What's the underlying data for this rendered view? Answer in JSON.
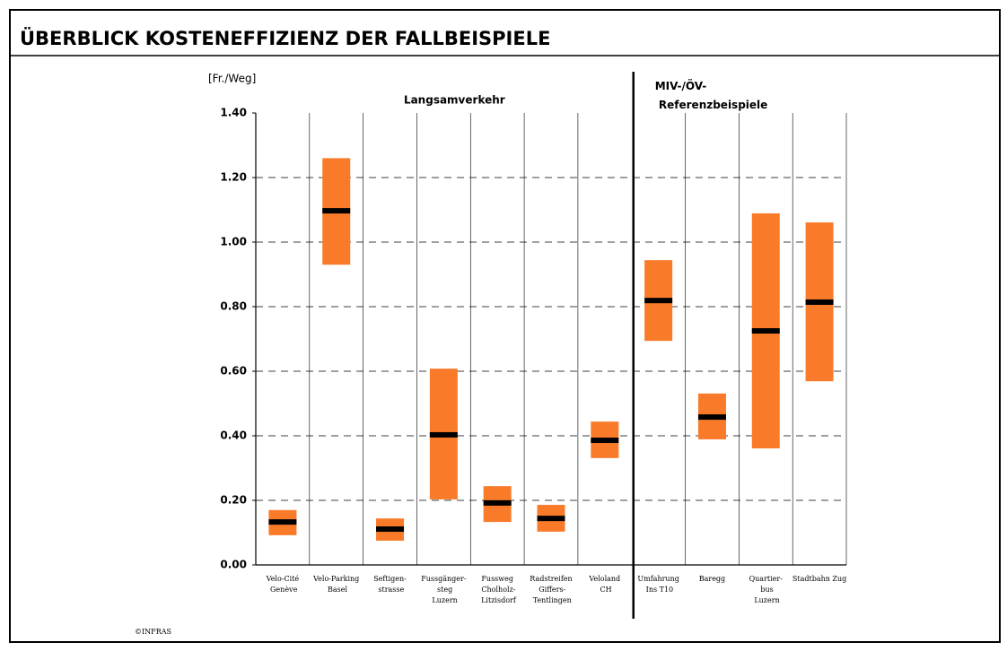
{
  "chart_data": {
    "type": "range",
    "title": "ÜBERBLICK KOSTENEFFIZIENZ DER FALLBEISPIELE",
    "y_label": "[Fr./Weg]",
    "source": "©INFRAS",
    "groups": [
      "Langsamverkehr",
      "MIV-/ÖV-\nReferenzbeispiele"
    ],
    "categories": [
      "Velo-Cité\nGenève",
      "Velo-Parking\nBasel",
      "Seftigen-\nstrasse",
      "Fussgänger-\nsteg\nLuzern",
      "Fussweg\nCholholz-\nLitzisdorf",
      "Radstreifen\nGiffers-\nTentlingen",
      "Veloland\nCH",
      "Umfahrung\nIns T10",
      "Baregg",
      "Quartier-\nbus\nLuzern",
      "Stadtbahn Zug"
    ],
    "low": [
      0.092,
      0.93,
      0.075,
      0.203,
      0.133,
      0.103,
      0.331,
      0.694,
      0.389,
      0.361,
      0.569
    ],
    "high": [
      0.17,
      1.26,
      0.144,
      0.608,
      0.244,
      0.186,
      0.444,
      0.944,
      0.531,
      1.089,
      1.061
    ],
    "mid": [
      0.133,
      1.097,
      0.111,
      0.403,
      0.192,
      0.144,
      0.386,
      0.819,
      0.458,
      0.725,
      0.814
    ],
    "color": "#f97b2a",
    "mid_color": "#000000",
    "ylim": [
      0,
      1.4
    ],
    "yticks": [
      {
        "value": 0,
        "label": "0.00"
      },
      {
        "value": 0.2,
        "label": "0.20"
      },
      {
        "value": 0.4,
        "label": "0.40"
      },
      {
        "value": 0.6,
        "label": "0.60"
      },
      {
        "value": 0.8,
        "label": "0.80"
      },
      {
        "value": 1.0,
        "label": "1.00"
      },
      {
        "value": 1.2,
        "label": "1.20"
      },
      {
        "value": 1.4,
        "label": "1.40"
      }
    ],
    "grid": true
  }
}
